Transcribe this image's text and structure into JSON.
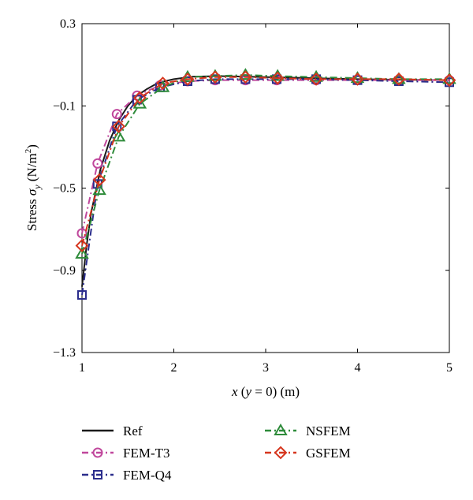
{
  "chart_data": {
    "type": "line",
    "title": "",
    "xlabel": {
      "var": "x",
      "paren_var": "y",
      "paren_rest": " = 0)",
      "unit": " (m)"
    },
    "ylabel": {
      "prefix": "Stress ",
      "sym": "σ",
      "sub": "y",
      "unit_open": " (N/m",
      "unit_sup": "2",
      "unit_close": ")"
    },
    "xlim": [
      1,
      5
    ],
    "ylim": [
      -1.3,
      0.3
    ],
    "xticks": [
      1,
      2,
      3,
      4,
      5
    ],
    "xtick_labels": [
      "1",
      "2",
      "3",
      "4",
      "5"
    ],
    "yticks": [
      0.3,
      -0.1,
      -0.5,
      -0.9,
      -1.3
    ],
    "ytick_labels": [
      "0.3",
      "−0.1",
      "−0.5",
      "−0.9",
      "−1.3"
    ],
    "grid": false,
    "legend_position": "below",
    "series": [
      {
        "name": "Ref",
        "color": "#1a1a1a",
        "dash": "solid",
        "marker": "none",
        "x": [
          1.0,
          1.05,
          1.1,
          1.2,
          1.3,
          1.4,
          1.5,
          1.6,
          1.7,
          1.8,
          1.9,
          2.0,
          2.2,
          2.5,
          2.8,
          3.2,
          3.6,
          4.0,
          4.5,
          5.0
        ],
        "y": [
          -0.98,
          -0.78,
          -0.62,
          -0.41,
          -0.27,
          -0.17,
          -0.1,
          -0.05,
          -0.02,
          0.005,
          0.02,
          0.03,
          0.042,
          0.045,
          0.042,
          0.038,
          0.034,
          0.03,
          0.027,
          0.025
        ]
      },
      {
        "name": "FEM-T3",
        "color": "#c0479c",
        "dash": "dashdot",
        "marker": "circle",
        "x": [
          1.0,
          1.17,
          1.38,
          1.6,
          1.85,
          2.15,
          2.45,
          2.78,
          3.12,
          3.55,
          4.0,
          4.45,
          5.0
        ],
        "y": [
          -0.72,
          -0.38,
          -0.14,
          -0.05,
          0.0,
          0.02,
          0.025,
          0.025,
          0.025,
          0.025,
          0.025,
          0.025,
          0.025
        ]
      },
      {
        "name": "FEM-Q4",
        "color": "#2b2d8c",
        "dash": "dashdot",
        "marker": "square",
        "x": [
          1.0,
          1.17,
          1.38,
          1.6,
          1.85,
          2.15,
          2.45,
          2.78,
          3.12,
          3.55,
          4.0,
          4.45,
          5.0
        ],
        "y": [
          -1.02,
          -0.48,
          -0.2,
          -0.07,
          -0.01,
          0.02,
          0.03,
          0.03,
          0.03,
          0.03,
          0.025,
          0.02,
          0.015
        ]
      },
      {
        "name": "NSFEM",
        "color": "#2e8b3a",
        "dash": "dashdot",
        "marker": "triangle",
        "x": [
          1.0,
          1.19,
          1.4,
          1.63,
          1.88,
          2.15,
          2.45,
          2.78,
          3.13,
          3.55,
          4.0,
          4.45,
          5.0
        ],
        "y": [
          -0.82,
          -0.51,
          -0.25,
          -0.09,
          -0.01,
          0.04,
          0.045,
          0.05,
          0.045,
          0.04,
          0.035,
          0.03,
          0.03
        ]
      },
      {
        "name": "GSFEM",
        "color": "#d6361e",
        "dash": "dashdot",
        "marker": "diamond",
        "x": [
          1.0,
          1.19,
          1.4,
          1.63,
          1.88,
          2.15,
          2.45,
          2.78,
          3.13,
          3.55,
          4.0,
          4.45,
          5.0
        ],
        "y": [
          -0.78,
          -0.46,
          -0.2,
          -0.06,
          0.01,
          0.03,
          0.04,
          0.04,
          0.035,
          0.03,
          0.03,
          0.03,
          0.025
        ]
      }
    ]
  }
}
